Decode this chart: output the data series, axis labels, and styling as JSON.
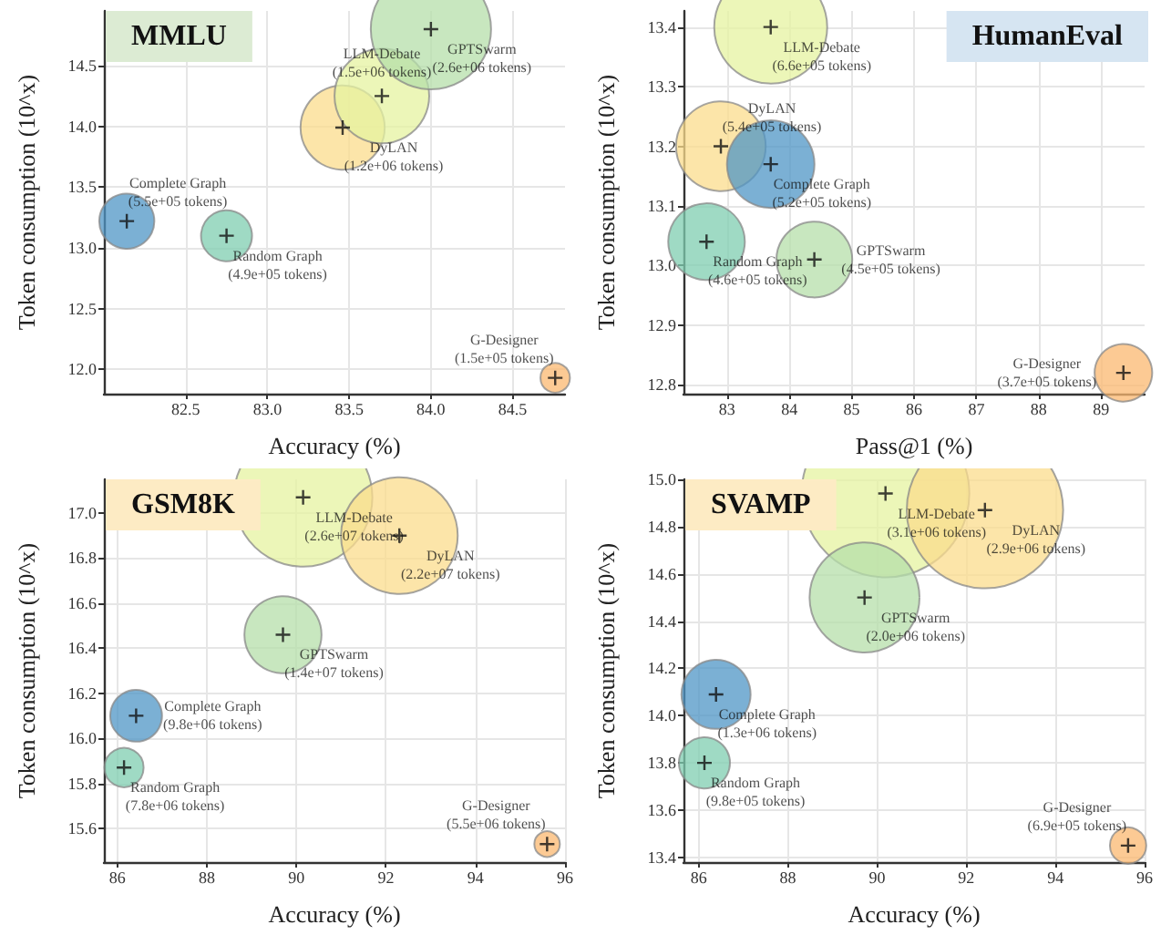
{
  "chart_data": [
    {
      "type": "bubble",
      "title": "MMLU",
      "xlabel": "Accuracy (%)",
      "ylabel": "Token consumption (10^x)",
      "xlim": [
        82.0,
        84.82
      ],
      "ylim": [
        11.8,
        14.95
      ],
      "xticks": [
        82.5,
        {
          "value": 83,
          "label": "83.0"
        },
        83.5,
        {
          "value": 84,
          "label": "84.0"
        },
        84.5
      ],
      "yticks": [
        {
          "value": 12,
          "label": "12.0"
        },
        12.5,
        {
          "value": 13,
          "label": "13.0"
        },
        13.5,
        {
          "value": 14,
          "label": "14.0"
        },
        14.5
      ],
      "grid": true,
      "series": [
        {
          "name": "Complete Graph",
          "color": "#4f95c6",
          "x": [
            82.14
          ],
          "values": [
            13.22
          ],
          "sizes": [
            0.21
          ],
          "value_labels": [
            "(5.5e+05 tokens)"
          ]
        },
        {
          "name": "Random Graph",
          "color": "#7fcdb0",
          "x": [
            82.75
          ],
          "values": [
            13.1
          ],
          "sizes": [
            0.18
          ],
          "value_labels": [
            "(4.9e+05 tokens)"
          ]
        },
        {
          "name": "DyLAN",
          "color": "#fbdc8c",
          "x": [
            83.46
          ],
          "values": [
            13.99
          ],
          "sizes": [
            0.49
          ],
          "value_labels": [
            "(1.2e+06 tokens)"
          ]
        },
        {
          "name": "LLM-Debate",
          "color": "#e6f3a0",
          "x": [
            83.7
          ],
          "values": [
            14.25
          ],
          "sizes": [
            0.62
          ],
          "value_labels": [
            "(1.5e+06 tokens)"
          ]
        },
        {
          "name": "GPTSwarm",
          "color": "#b6dfaa",
          "x": [
            84.0
          ],
          "values": [
            14.8
          ],
          "sizes": [
            1
          ],
          "value_labels": [
            "(2.6e+06 tokens)"
          ]
        },
        {
          "name": "G-Designer",
          "color": "#fbb870",
          "x": [
            84.76
          ],
          "values": [
            11.93
          ],
          "sizes": [
            0.06
          ],
          "value_labels": [
            "(1.5e+05 tokens)"
          ]
        }
      ]
    },
    {
      "type": "bubble",
      "title": "HumanEval",
      "xlabel": "Pass@1 (%)",
      "ylabel": "Token consumption (10^x)",
      "xlim": [
        82.3,
        89.7
      ],
      "ylim": [
        12.785,
        13.427
      ],
      "xticks": [
        83,
        84,
        85,
        86,
        87,
        88,
        89
      ],
      "yticks": [
        12.8,
        12.9,
        {
          "value": 13,
          "label": "13.0"
        },
        13.1,
        13.2,
        13.3,
        13.4
      ],
      "grid": true,
      "series": [
        {
          "name": "LLM-Debate",
          "color": "#e6f3a0",
          "x": [
            83.7
          ],
          "values": [
            13.4
          ],
          "sizes": [
            1
          ],
          "value_labels": [
            "(6.6e+05 tokens)"
          ]
        },
        {
          "name": "DyLAN",
          "color": "#fbdc8c",
          "x": [
            82.9
          ],
          "values": [
            13.2
          ],
          "sizes": [
            0.63
          ],
          "value_labels": [
            "(5.4e+05 tokens)"
          ]
        },
        {
          "name": "Complete Graph",
          "color": "#4f95c6",
          "x": [
            83.7
          ],
          "values": [
            13.17
          ],
          "sizes": [
            0.6
          ],
          "value_labels": [
            "(5.2e+05 tokens)"
          ]
        },
        {
          "name": "Random Graph",
          "color": "#7fcdb0",
          "x": [
            82.67
          ],
          "values": [
            13.04
          ],
          "sizes": [
            0.46
          ],
          "value_labels": [
            "(4.6e+05 tokens)"
          ]
        },
        {
          "name": "GPTSwarm",
          "color": "#b6dfaa",
          "x": [
            84.4
          ],
          "values": [
            13.01
          ],
          "sizes": [
            0.45
          ],
          "value_labels": [
            "(4.5e+05 tokens)"
          ]
        },
        {
          "name": "G-Designer",
          "color": "#fbb870",
          "x": [
            89.36
          ],
          "values": [
            12.82
          ],
          "sizes": [
            0.26
          ],
          "value_labels": [
            "(3.7e+05 tokens)"
          ]
        }
      ]
    },
    {
      "type": "bubble",
      "title": "GSM8K",
      "xlabel": "Accuracy (%)",
      "ylabel": "Token consumption (10^x)",
      "xlim": [
        85.7,
        96
      ],
      "ylim": [
        15.45,
        17.15
      ],
      "xticks": [
        86,
        88,
        90,
        92,
        94,
        96
      ],
      "yticks": [
        15.6,
        15.8,
        {
          "value": 16,
          "label": "16.0"
        },
        16.2,
        16.4,
        16.6,
        16.8,
        {
          "value": 17,
          "label": "17.0"
        }
      ],
      "grid": true,
      "series": [
        {
          "name": "LLM-Debate",
          "color": "#e6f3a0",
          "x": [
            90.15
          ],
          "values": [
            17.07
          ],
          "sizes": [
            1
          ],
          "value_labels": [
            "(2.6e+07 tokens)"
          ]
        },
        {
          "name": "DyLAN",
          "color": "#fbdc8c",
          "x": [
            92.3
          ],
          "values": [
            16.9
          ],
          "sizes": [
            0.71
          ],
          "value_labels": [
            "(2.2e+07 tokens)"
          ]
        },
        {
          "name": "GPTSwarm",
          "color": "#b6dfaa",
          "x": [
            89.7
          ],
          "values": [
            16.46
          ],
          "sizes": [
            0.31
          ],
          "value_labels": [
            "(1.4e+07 tokens)"
          ]
        },
        {
          "name": "Complete Graph",
          "color": "#4f95c6",
          "x": [
            86.42
          ],
          "values": [
            16.1
          ],
          "sizes": [
            0.14
          ],
          "value_labels": [
            "(9.8e+06 tokens)"
          ]
        },
        {
          "name": "Random Graph",
          "color": "#7fcdb0",
          "x": [
            86.15
          ],
          "values": [
            15.87
          ],
          "sizes": [
            0.08
          ],
          "value_labels": [
            "(7.8e+06 tokens)"
          ]
        },
        {
          "name": "G-Designer",
          "color": "#fbb870",
          "x": [
            95.6
          ],
          "values": [
            15.53
          ],
          "sizes": [
            0.034
          ],
          "value_labels": [
            "(5.5e+06 tokens)"
          ]
        }
      ]
    },
    {
      "type": "bubble",
      "title": "SVAMP",
      "xlabel": "Accuracy (%)",
      "ylabel": "Token consumption (10^x)",
      "xlim": [
        85.66,
        96
      ],
      "ylim": [
        13.38,
        15.0
      ],
      "xticks": [
        86,
        88,
        90,
        92,
        94,
        96
      ],
      "yticks": [
        13.4,
        13.6,
        13.8,
        {
          "value": 14,
          "label": "14.0"
        },
        14.2,
        14.4,
        14.6,
        14.8,
        {
          "value": 15,
          "label": "15.0"
        }
      ],
      "grid": true,
      "series": [
        {
          "name": "LLM-Debate",
          "color": "#e6f3a0",
          "x": [
            90.19
          ],
          "values": [
            14.94
          ],
          "sizes": [
            1
          ],
          "value_labels": [
            "(3.1e+06 tokens)"
          ]
        },
        {
          "name": "DyLAN",
          "color": "#fbdc8c",
          "x": [
            92.42
          ],
          "values": [
            14.87
          ],
          "sizes": [
            0.87
          ],
          "value_labels": [
            "(2.9e+06 tokens)"
          ]
        },
        {
          "name": "GPTSwarm",
          "color": "#b6dfaa",
          "x": [
            89.72
          ],
          "values": [
            14.5
          ],
          "sizes": [
            0.43
          ],
          "value_labels": [
            "(2.0e+06 tokens)"
          ]
        },
        {
          "name": "Complete Graph",
          "color": "#4f95c6",
          "x": [
            86.39
          ],
          "values": [
            14.09
          ],
          "sizes": [
            0.17
          ],
          "value_labels": [
            "(1.3e+06 tokens)"
          ]
        },
        {
          "name": "Random Graph",
          "color": "#7fcdb0",
          "x": [
            86.13
          ],
          "values": [
            13.8
          ],
          "sizes": [
            0.093
          ],
          "value_labels": [
            "(9.8e+05 tokens)"
          ]
        },
        {
          "name": "G-Designer",
          "color": "#fbb870",
          "x": [
            95.63
          ],
          "values": [
            13.45
          ],
          "sizes": [
            0.047
          ],
          "value_labels": [
            "(6.9e+05 tokens)"
          ]
        }
      ]
    }
  ]
}
